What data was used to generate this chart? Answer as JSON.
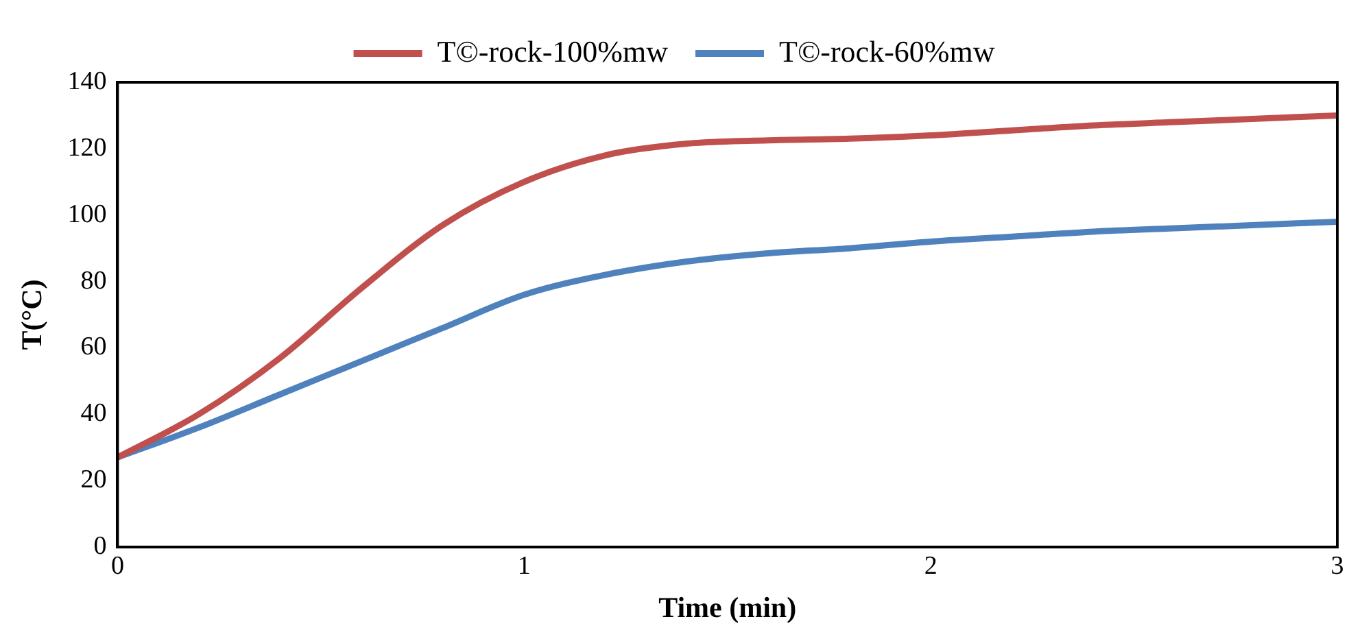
{
  "chart_data": {
    "type": "line",
    "xlabel": "Time (min)",
    "ylabel": "T(°C)",
    "x": [
      0,
      0.2,
      0.4,
      0.6,
      0.8,
      1,
      1.2,
      1.4,
      1.6,
      1.8,
      2,
      2.2,
      2.4,
      2.6,
      2.8,
      3
    ],
    "series": [
      {
        "name": "T©-rock-100%mw",
        "color": "#c0504d",
        "values": [
          27,
          40,
          57,
          78,
          97,
          110,
          118,
          121.5,
          122.5,
          123,
          124,
          125.5,
          127,
          128,
          129,
          130
        ]
      },
      {
        "name": "T©-rock-60%mw",
        "color": "#4f81bd",
        "values": [
          27,
          36,
          46,
          56,
          66,
          76,
          82,
          86,
          88.5,
          90,
          92,
          93.5,
          95,
          96,
          97,
          98
        ]
      }
    ],
    "xlim": [
      0,
      3
    ],
    "xticks": [
      0,
      1,
      2,
      3
    ],
    "ylim": [
      0,
      140
    ],
    "yticks": [
      0,
      20,
      40,
      60,
      80,
      100,
      120,
      140
    ],
    "grid": false,
    "legend": "top",
    "marker": "none",
    "line_style": "solid"
  }
}
